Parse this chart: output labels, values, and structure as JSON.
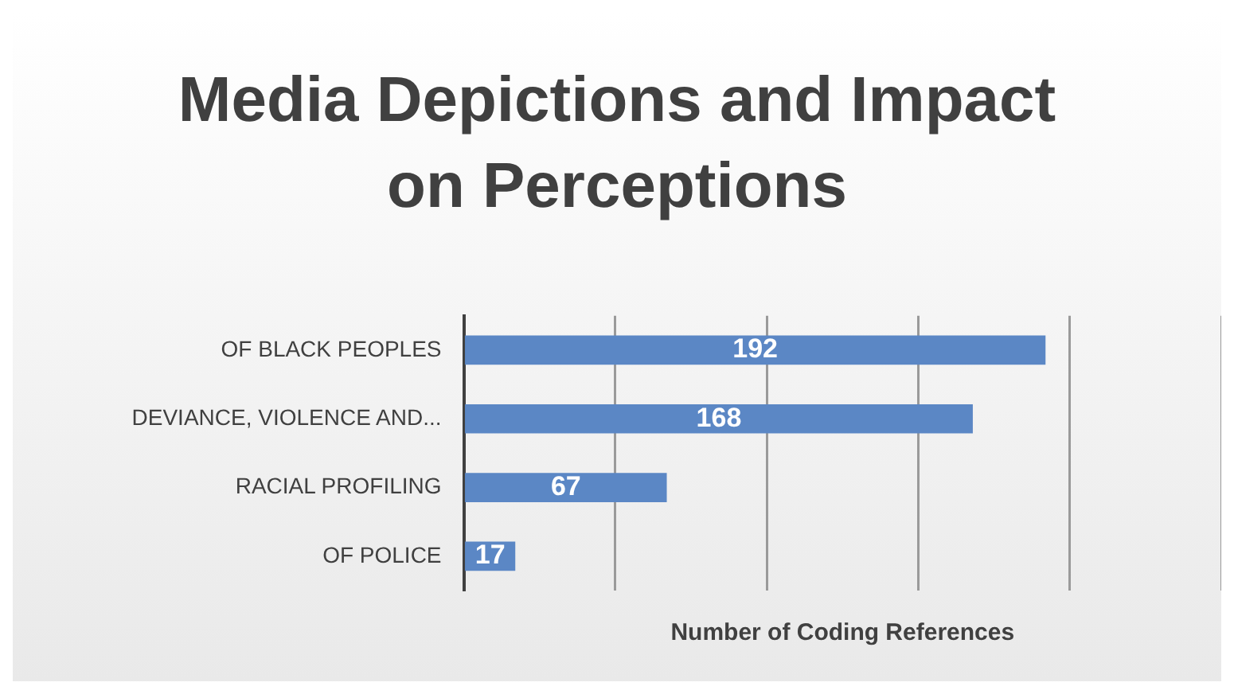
{
  "chart_data": {
    "type": "bar",
    "orientation": "horizontal",
    "title": "Media Depictions  and Impact on Perceptions",
    "xlabel": "Number of Coding References",
    "categories": [
      "OF BLACK PEOPLES",
      "DEVIANCE, VIOLENCE AND...",
      "RACIAL PROFILING",
      "OF POLICE"
    ],
    "values": [
      192,
      168,
      67,
      17
    ],
    "color": "#5b87c5",
    "xlim": [
      0,
      250
    ],
    "xticks": [
      {
        "value": 0,
        "label": null
      },
      {
        "value": 50,
        "label": null
      },
      {
        "value": 100,
        "label": null
      },
      {
        "value": 150,
        "label": null
      },
      {
        "value": 200,
        "label": null
      },
      {
        "value": 250,
        "label": null
      }
    ],
    "grid": "x",
    "tick_labels": "y",
    "data_labels": true
  }
}
